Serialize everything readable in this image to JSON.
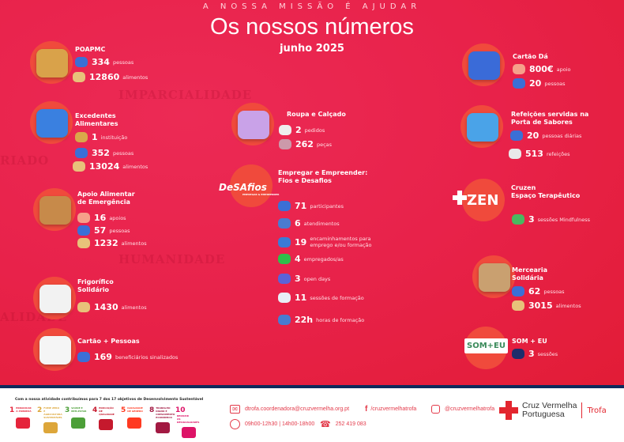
{
  "header": {
    "mission": "A NOSSA MISSÃO É AJUDAR",
    "title": "Os nossos números",
    "subtitle": "junho 2025"
  },
  "watermarks": [
    "IMPARCIALIDADE",
    "HUMANIDADE",
    "RIADO",
    "ALIDADE",
    "DADE"
  ],
  "colors": {
    "background": "#e8224a",
    "circle": "#f04a3c",
    "footer_bar": "#0d2a5c",
    "accent": "#e33a4a"
  },
  "programs": [
    {
      "title": "POAPMC",
      "icon": "picnic-basket-icon",
      "stats": [
        {
          "value": "334",
          "label": "pessoas",
          "icon": "people-icon"
        },
        {
          "value": "12860",
          "label": "alimentos",
          "icon": "food-box-icon"
        }
      ]
    },
    {
      "title": "Excedentes\nAlimentares",
      "icon": "shopping-basket-icon",
      "stats": [
        {
          "value": "1",
          "label": "instituição",
          "icon": "building-icon"
        },
        {
          "value": "352",
          "label": "pessoas",
          "icon": "people-icon"
        },
        {
          "value": "13024",
          "label": "alimentos",
          "icon": "food-box-icon"
        }
      ]
    },
    {
      "title": "Apoio Alimentar\nde Emergência",
      "icon": "fruit-basket-icon",
      "stats": [
        {
          "value": "16",
          "label": "apoios",
          "icon": "heart-hand-icon"
        },
        {
          "value": "57",
          "label": "pessoas",
          "icon": "people-icon"
        },
        {
          "value": "1232",
          "label": "alimentos",
          "icon": "food-box-icon"
        }
      ]
    },
    {
      "title": "Frigorífico\nSolidário",
      "icon": "fridge-icon",
      "stats": [
        {
          "value": "1430",
          "label": "alimentos",
          "icon": "food-box-icon"
        }
      ]
    },
    {
      "title": "Cartão + Pessoas",
      "icon": "card-icon",
      "stats": [
        {
          "value": "169",
          "label": "beneficiários sinalizados",
          "icon": "people-icon"
        }
      ]
    },
    {
      "title": "Roupa e Calçado",
      "icon": "clothes-icon",
      "stats": [
        {
          "value": "2",
          "label": "pedidos",
          "icon": "hanger-icon"
        },
        {
          "value": "262",
          "label": "peças",
          "icon": "clothes-rack-icon"
        }
      ]
    },
    {
      "title": "Empregar e Empreender:\nFios e Desafios",
      "logo": "DeSAfios",
      "logo_sub": "EMPREGAR & EMPREENDER",
      "icon": "desafios-logo",
      "stats": [
        {
          "value": "71",
          "label": "participantes",
          "icon": "people-icon"
        },
        {
          "value": "6",
          "label": "atendimentos",
          "icon": "desk-icon"
        },
        {
          "value": "19",
          "label": "encaminhamentos para\nemprego e/ou formação",
          "icon": "briefcase-icon"
        },
        {
          "value": "4",
          "label": "empregados/as",
          "icon": "check-icon"
        },
        {
          "value": "3",
          "label": "open days",
          "icon": "headset-icon"
        },
        {
          "value": "11",
          "label": "sessões de formação",
          "icon": "training-icon"
        },
        {
          "value": "22h",
          "label": "horas de formação",
          "icon": "clock-icon"
        }
      ]
    },
    {
      "title": "Cartão Dá",
      "icon": "card-hand-icon",
      "stats": [
        {
          "value": "800€",
          "label": "apoio",
          "icon": "heart-hand-icon"
        },
        {
          "value": "20",
          "label": "pessoas",
          "icon": "people-icon"
        }
      ]
    },
    {
      "title": "Refeições servidas na\nPorta de Sabores",
      "icon": "plate-icon",
      "stats": [
        {
          "value": "20",
          "label": "pessoas diárias",
          "icon": "people-icon"
        },
        {
          "value": "513",
          "label": "refeições",
          "icon": "soup-bowl-icon"
        }
      ]
    },
    {
      "title": "Cruzen\nEspaço Terapêutico",
      "logo": "ZEN",
      "icon": "cruzen-logo",
      "stats": [
        {
          "value": "3",
          "label": "sessões Mindfulness",
          "icon": "meditation-icon"
        }
      ]
    },
    {
      "title": "Mercearia\nSolidária",
      "icon": "grocery-bag-icon",
      "stats": [
        {
          "value": "62",
          "label": "pessoas",
          "icon": "people-icon"
        },
        {
          "value": "3015",
          "label": "alimentos",
          "icon": "food-box-icon"
        }
      ]
    },
    {
      "title": "SOM + EU",
      "logo": "SOM+EU",
      "icon": "som-eu-logo",
      "stats": [
        {
          "value": "3",
          "label": "sessões",
          "icon": "speaker-icon"
        }
      ]
    }
  ],
  "footer": {
    "sdg_title": "Com a nossa atividade contribuímos para 7 dos 17 objetivos de Desenvolvimento Sustentável",
    "sdgs": [
      {
        "n": "1",
        "t": "ERRADICAR A POBREZA",
        "color": "#e5243b"
      },
      {
        "n": "2",
        "t": "FOME ZERO E AGRICULTURA SUSTENTÁVEL",
        "color": "#dda63a"
      },
      {
        "n": "3",
        "t": "SAÚDE E BEM-ESTAR",
        "color": "#4c9f38"
      },
      {
        "n": "4",
        "t": "EDUCAÇÃO DE QUALIDADE",
        "color": "#c5192d"
      },
      {
        "n": "5",
        "t": "IGUALDADE DE GÉNERO",
        "color": "#ff3a21"
      },
      {
        "n": "8",
        "t": "TRABALHO DIGNO E CRESCIMENTO ECONÓMICO",
        "color": "#a21942"
      },
      {
        "n": "10",
        "t": "REDUZIR AS DESIGUALDADES",
        "color": "#dd1367"
      }
    ],
    "email": "dtrofa.coordenadora@cruzvermelha.org.pt",
    "facebook": "/cruzvermelhatrofa",
    "instagram": "@cruzvermelhatrofa",
    "hours": "09h00-12h30 | 14h00-18h00",
    "phone": "252 419 083",
    "org_line1": "Cruz Vermelha",
    "org_line2": "Portuguesa",
    "branch": "Trofa"
  }
}
